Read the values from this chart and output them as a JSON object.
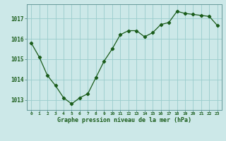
{
  "x": [
    0,
    1,
    2,
    3,
    4,
    5,
    6,
    7,
    8,
    9,
    10,
    11,
    12,
    13,
    14,
    15,
    16,
    17,
    18,
    19,
    20,
    21,
    22,
    23
  ],
  "y": [
    1015.8,
    1015.1,
    1014.2,
    1013.7,
    1013.1,
    1012.8,
    1013.1,
    1013.3,
    1014.1,
    1014.9,
    1015.5,
    1016.2,
    1016.4,
    1016.4,
    1016.1,
    1016.3,
    1016.7,
    1016.8,
    1017.35,
    1017.25,
    1017.2,
    1017.15,
    1017.1,
    1016.65
  ],
  "line_color": "#1a5c1a",
  "marker": "D",
  "marker_size": 2.2,
  "background_color": "#cce8e8",
  "grid_color": "#99cccc",
  "xlabel": "Graphe pression niveau de la mer (hPa)",
  "xlabel_color": "#1a5c1a",
  "tick_color": "#1a5c1a",
  "ylim": [
    1012.5,
    1017.7
  ],
  "yticks": [
    1013,
    1014,
    1015,
    1016,
    1017
  ],
  "xticks": [
    0,
    1,
    2,
    3,
    4,
    5,
    6,
    7,
    8,
    9,
    10,
    11,
    12,
    13,
    14,
    15,
    16,
    17,
    18,
    19,
    20,
    21,
    22,
    23
  ],
  "xlim": [
    -0.5,
    23.5
  ],
  "spine_color": "#669999"
}
